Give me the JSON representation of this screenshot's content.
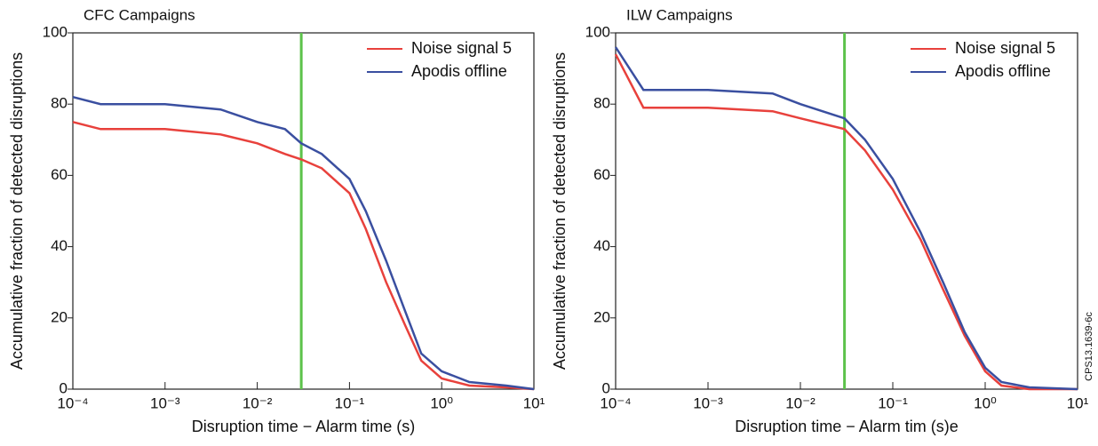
{
  "figure_id": "CPS13.1639-6c",
  "chart_data": [
    {
      "type": "line",
      "title": "CFC Campaigns",
      "x_label": "Disruption time − Alarm time (s)",
      "y_label": "Accumulative fraction of detected disruptions",
      "xscale": "log",
      "xlim": [
        0.0001,
        10
      ],
      "ylim": [
        0,
        100
      ],
      "xticks": [
        {
          "value": 0.0001,
          "label": "10⁻⁴"
        },
        {
          "value": 0.001,
          "label": "10⁻³"
        },
        {
          "value": 0.01,
          "label": "10⁻²"
        },
        {
          "value": 0.1,
          "label": "10⁻¹"
        },
        {
          "value": 1,
          "label": "10⁰"
        },
        {
          "value": 10,
          "label": "10¹"
        }
      ],
      "yticks": [
        0,
        20,
        40,
        60,
        80,
        100
      ],
      "vline": 0.03,
      "vline_color": "#5cc24a",
      "legend": "upper right",
      "x": [
        0.0001,
        0.0002,
        0.001,
        0.004,
        0.01,
        0.02,
        0.03,
        0.05,
        0.1,
        0.15,
        0.25,
        0.4,
        0.6,
        1,
        2,
        5,
        10
      ],
      "series": [
        {
          "name": "Noise signal 5",
          "color": "#e8413c",
          "values": [
            75,
            73,
            73,
            71.5,
            69,
            66,
            64.5,
            62,
            55,
            45,
            30,
            18,
            8,
            3,
            1,
            0.5,
            0
          ]
        },
        {
          "name": "Apodis offline",
          "color": "#3a4fa0",
          "values": [
            82,
            80,
            80,
            78.5,
            75,
            73,
            69,
            66,
            59,
            50,
            36,
            22,
            10,
            5,
            2,
            1,
            0
          ]
        }
      ]
    },
    {
      "type": "line",
      "title": "ILW Campaigns",
      "x_label": "Disruption time − Alarm tim (s)e",
      "y_label": "Accumulative fraction of detected disruptions",
      "xscale": "log",
      "xlim": [
        0.0001,
        10
      ],
      "ylim": [
        0,
        100
      ],
      "xticks": [
        {
          "value": 0.0001,
          "label": "10⁻⁴"
        },
        {
          "value": 0.001,
          "label": "10⁻³"
        },
        {
          "value": 0.01,
          "label": "10⁻²"
        },
        {
          "value": 0.1,
          "label": "10⁻¹"
        },
        {
          "value": 1,
          "label": "10⁰"
        },
        {
          "value": 10,
          "label": "10¹"
        }
      ],
      "yticks": [
        0,
        20,
        40,
        60,
        80,
        100
      ],
      "vline": 0.03,
      "vline_color": "#5cc24a",
      "legend": "upper right",
      "x": [
        0.0001,
        0.0002,
        0.001,
        0.005,
        0.01,
        0.03,
        0.05,
        0.1,
        0.2,
        0.35,
        0.6,
        1,
        1.5,
        3,
        10
      ],
      "series": [
        {
          "name": "Noise signal 5",
          "color": "#e8413c",
          "values": [
            94,
            79,
            79,
            78,
            76,
            73,
            67,
            56,
            42,
            28,
            15,
            5,
            1,
            0,
            0
          ]
        },
        {
          "name": "Apodis offline",
          "color": "#3a4fa0",
          "values": [
            96,
            84,
            84,
            83,
            80,
            76,
            70,
            59,
            44,
            30,
            16,
            6,
            2,
            0.5,
            0
          ]
        }
      ]
    }
  ]
}
